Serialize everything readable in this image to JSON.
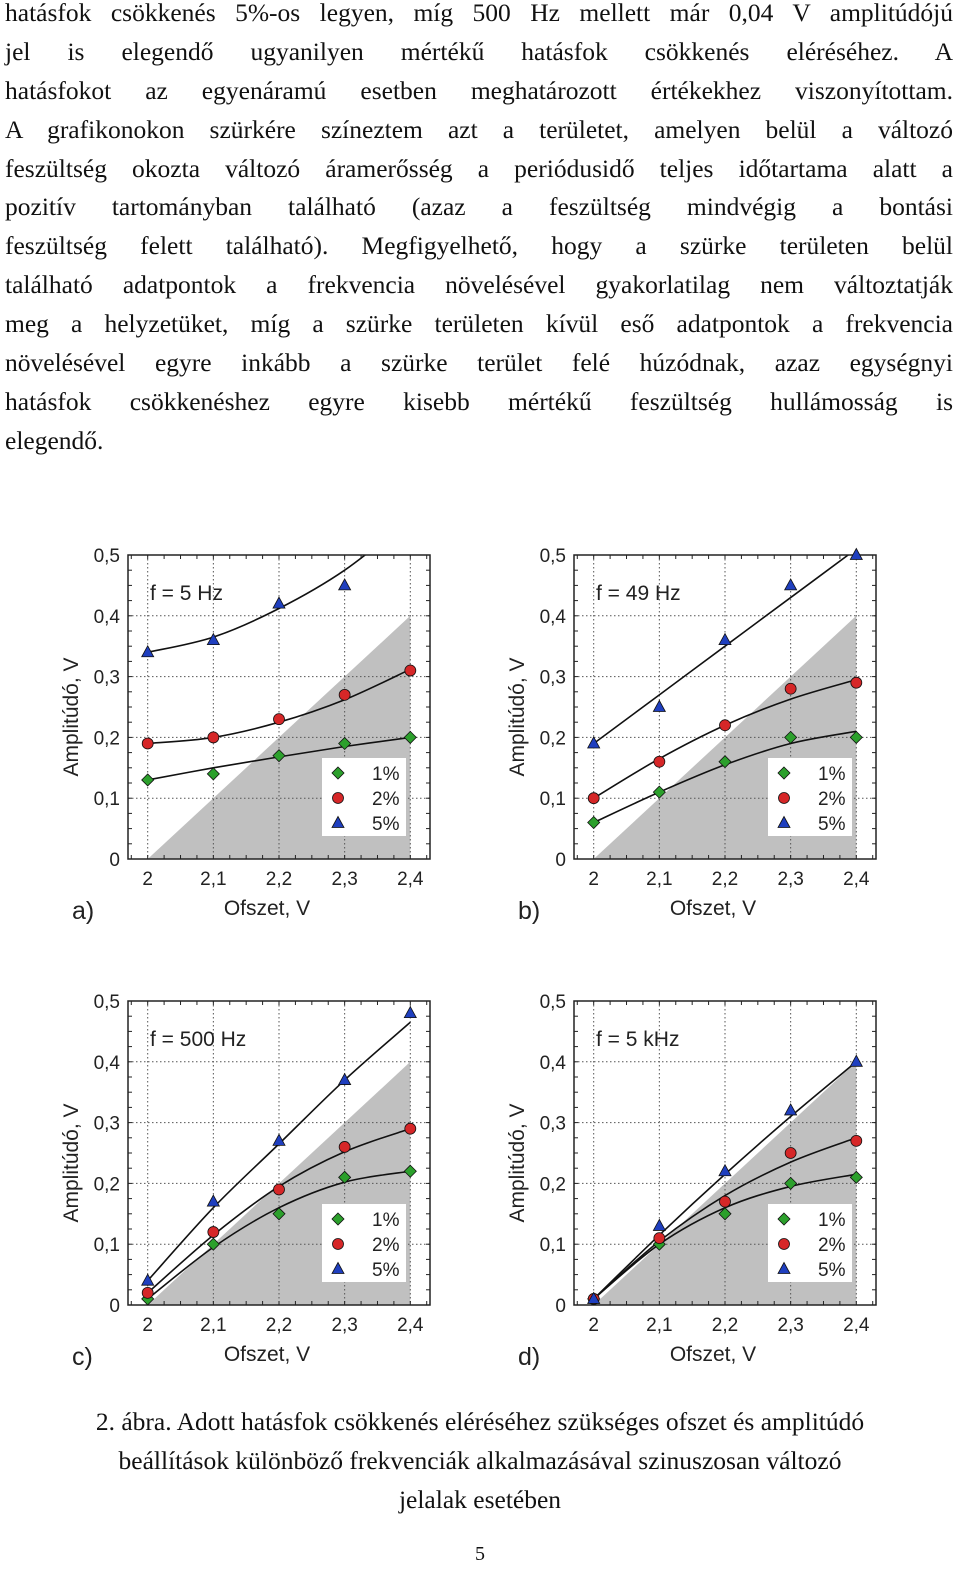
{
  "body_lines": [
    "hatásfok csökkenés 5%-os legyen, míg 500 Hz mellett már 0,04 V amplitúdójú",
    "jel is elegendő ugyanilyen mértékű hatásfok csökkenés eléréséhez. A",
    "hatásfokot az egyenáramú esetben meghatározott értékekhez viszonyítottam.",
    "A grafikonokon szürkére színeztem azt a területet, amelyen belül a változó",
    "feszültség okozta változó áramerősség a periódusidő teljes időtartama alatt a",
    "pozitív tartományban található (azaz a feszültség mindvégig a bontási",
    "feszültség felett található). Megfigyelhető, hogy a szürke területen belül",
    "található adatpontok a frekvencia növelésével gyakorlatilag nem változtatják",
    "meg a helyzetüket, míg a szürke területen kívül eső adatpontok a frekvencia",
    "növelésével egyre inkább a szürke terület felé húzódnak, azaz egységnyi",
    "hatásfok csökkenéshez egyre kisebb mértékű feszültség hullámosság is",
    "elegendő."
  ],
  "caption": [
    "2. ábra. Adott hatásfok csökkenés eléréséhez szükséges ofszet és amplitúdó",
    "beállítások különböző frekvenciák alkalmazásával szinuszosan változó",
    "jelalak esetében"
  ],
  "page_number": "5",
  "colors": {
    "shade": "#c0c0c0",
    "series_1": "#2ca02c",
    "series_2": "#d62728",
    "series_5": "#1f3fbf"
  },
  "chart_data": [
    {
      "type": "scatter",
      "panel_label": "a)",
      "annotation": "f = 5 Hz",
      "xlabel": "Ofszet, V",
      "ylabel": "Amplitúdó, V",
      "xlim": [
        1.97,
        2.43
      ],
      "ylim": [
        0,
        0.5
      ],
      "x_ticks": [
        "2",
        "2,1",
        "2,2",
        "2,3",
        "2,4"
      ],
      "y_ticks": [
        "0",
        "0,1",
        "0,2",
        "0,3",
        "0,4",
        "0,5"
      ],
      "shaded_region": [
        [
          2.0,
          0.0
        ],
        [
          2.4,
          0.0
        ],
        [
          2.4,
          0.4
        ]
      ],
      "legend": "bottom-right",
      "series": [
        {
          "name": "1%",
          "marker": "diamond",
          "x": [
            2.0,
            2.1,
            2.2,
            2.3,
            2.4
          ],
          "y": [
            0.13,
            0.14,
            0.17,
            0.19,
            0.2
          ],
          "fit": [
            0.13,
            0.15,
            0.168,
            0.185,
            0.2
          ]
        },
        {
          "name": "2%",
          "marker": "circle",
          "x": [
            2.0,
            2.1,
            2.2,
            2.3,
            2.4
          ],
          "y": [
            0.19,
            0.2,
            0.23,
            0.27,
            0.31
          ],
          "fit": [
            0.19,
            0.2,
            0.225,
            0.262,
            0.312
          ]
        },
        {
          "name": "5%",
          "marker": "triangle",
          "x": [
            2.0,
            2.1,
            2.2,
            2.3
          ],
          "y": [
            0.34,
            0.36,
            0.42,
            0.45
          ],
          "fit": [
            0.34,
            0.365,
            0.412,
            0.475,
            0.56
          ]
        }
      ]
    },
    {
      "type": "scatter",
      "panel_label": "b)",
      "annotation": "f = 49 Hz",
      "xlabel": "Ofszet, V",
      "ylabel": "Amplitúdó, V",
      "xlim": [
        1.97,
        2.43
      ],
      "ylim": [
        0,
        0.5
      ],
      "x_ticks": [
        "2",
        "2,1",
        "2,2",
        "2,3",
        "2,4"
      ],
      "y_ticks": [
        "0",
        "0,1",
        "0,2",
        "0,3",
        "0,4",
        "0,5"
      ],
      "shaded_region": [
        [
          2.0,
          0.0
        ],
        [
          2.4,
          0.0
        ],
        [
          2.4,
          0.4
        ]
      ],
      "legend": "bottom-right",
      "series": [
        {
          "name": "1%",
          "marker": "diamond",
          "x": [
            2.0,
            2.1,
            2.2,
            2.3,
            2.4
          ],
          "y": [
            0.06,
            0.11,
            0.16,
            0.2,
            0.2
          ],
          "fit": [
            0.06,
            0.11,
            0.155,
            0.19,
            0.21
          ]
        },
        {
          "name": "2%",
          "marker": "circle",
          "x": [
            2.0,
            2.1,
            2.2,
            2.3,
            2.4
          ],
          "y": [
            0.1,
            0.16,
            0.22,
            0.28,
            0.29
          ],
          "fit": [
            0.1,
            0.165,
            0.22,
            0.263,
            0.295
          ]
        },
        {
          "name": "5%",
          "marker": "triangle",
          "x": [
            2.0,
            2.1,
            2.2,
            2.3,
            2.4
          ],
          "y": [
            0.19,
            0.25,
            0.36,
            0.45,
            0.5
          ],
          "fit": [
            0.19,
            0.27,
            0.35,
            0.43,
            0.51
          ]
        }
      ]
    },
    {
      "type": "scatter",
      "panel_label": "c)",
      "annotation": "f = 500 Hz",
      "xlabel": "Ofszet, V",
      "ylabel": "Amplitúdó, V",
      "xlim": [
        1.97,
        2.43
      ],
      "ylim": [
        0,
        0.5
      ],
      "x_ticks": [
        "2",
        "2,1",
        "2,2",
        "2,3",
        "2,4"
      ],
      "y_ticks": [
        "0",
        "0,1",
        "0,2",
        "0,3",
        "0,4",
        "0,5"
      ],
      "shaded_region": [
        [
          2.0,
          0.0
        ],
        [
          2.4,
          0.0
        ],
        [
          2.4,
          0.4
        ]
      ],
      "legend": "bottom-right",
      "series": [
        {
          "name": "1%",
          "marker": "diamond",
          "x": [
            2.0,
            2.1,
            2.2,
            2.3,
            2.4
          ],
          "y": [
            0.01,
            0.1,
            0.15,
            0.21,
            0.22
          ],
          "fit": [
            0.01,
            0.095,
            0.16,
            0.202,
            0.22
          ]
        },
        {
          "name": "2%",
          "marker": "circle",
          "x": [
            2.0,
            2.1,
            2.2,
            2.3,
            2.4
          ],
          "y": [
            0.02,
            0.12,
            0.19,
            0.26,
            0.29
          ],
          "fit": [
            0.02,
            0.115,
            0.195,
            0.252,
            0.29
          ]
        },
        {
          "name": "5%",
          "marker": "triangle",
          "x": [
            2.0,
            2.1,
            2.2,
            2.3,
            2.4
          ],
          "y": [
            0.04,
            0.17,
            0.27,
            0.37,
            0.48
          ],
          "fit": [
            0.04,
            0.16,
            0.265,
            0.37,
            0.465
          ]
        }
      ]
    },
    {
      "type": "scatter",
      "panel_label": "d)",
      "annotation": "f = 5 kHz",
      "xlabel": "Ofszet, V",
      "ylabel": "Amplitúdó, V",
      "xlim": [
        1.97,
        2.43
      ],
      "ylim": [
        0,
        0.5
      ],
      "x_ticks": [
        "2",
        "2,1",
        "2,2",
        "2,3",
        "2,4"
      ],
      "y_ticks": [
        "0",
        "0,1",
        "0,2",
        "0,3",
        "0,4",
        "0,5"
      ],
      "shaded_region": [
        [
          2.0,
          0.0
        ],
        [
          2.4,
          0.0
        ],
        [
          2.4,
          0.4
        ]
      ],
      "legend": "bottom-right",
      "series": [
        {
          "name": "1%",
          "marker": "diamond",
          "x": [
            2.0,
            2.1,
            2.2,
            2.3,
            2.4
          ],
          "y": [
            0.01,
            0.1,
            0.15,
            0.2,
            0.21
          ],
          "fit": [
            0.01,
            0.1,
            0.16,
            0.195,
            0.215
          ]
        },
        {
          "name": "2%",
          "marker": "circle",
          "x": [
            2.0,
            2.1,
            2.2,
            2.3,
            2.4
          ],
          "y": [
            0.01,
            0.11,
            0.17,
            0.25,
            0.27
          ],
          "fit": [
            0.01,
            0.105,
            0.18,
            0.235,
            0.275
          ]
        },
        {
          "name": "5%",
          "marker": "triangle",
          "x": [
            2.0,
            2.1,
            2.2,
            2.3,
            2.4
          ],
          "y": [
            0.01,
            0.13,
            0.22,
            0.32,
            0.4
          ],
          "fit": [
            0.01,
            0.115,
            0.215,
            0.31,
            0.4
          ]
        }
      ]
    }
  ]
}
